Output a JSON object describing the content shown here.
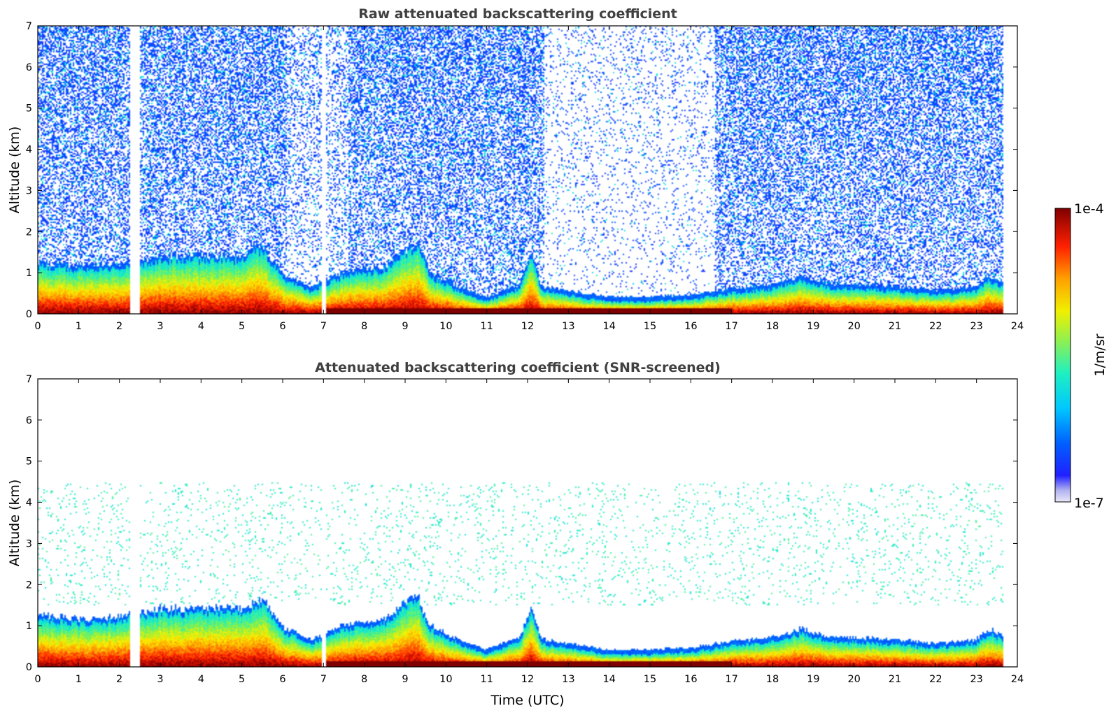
{
  "chart_data": [
    {
      "type": "heatmap",
      "title": "Raw attenuated backscattering coefficient",
      "xlabel": "",
      "ylabel": "Altitude (km)",
      "xlim": [
        0,
        24
      ],
      "ylim": [
        0,
        7
      ],
      "xticks": [
        "0",
        "1",
        "2",
        "3",
        "4",
        "5",
        "6",
        "7",
        "8",
        "9",
        "10",
        "11",
        "12",
        "13",
        "14",
        "15",
        "16",
        "17",
        "18",
        "19",
        "20",
        "21",
        "22",
        "23",
        "24"
      ],
      "yticks": [
        "0",
        "1",
        "2",
        "3",
        "4",
        "5",
        "6",
        "7"
      ],
      "screened": false,
      "data_gaps_utc": [
        [
          2.25,
          2.5
        ],
        [
          6.95,
          7.05
        ]
      ],
      "data_end_utc": 23.65,
      "boundary_layer_top_km": [
        [
          0,
          1.15
        ],
        [
          1,
          1.05
        ],
        [
          2,
          1.1
        ],
        [
          3,
          1.3
        ],
        [
          4,
          1.3
        ],
        [
          5,
          1.3
        ],
        [
          5.5,
          1.55
        ],
        [
          6,
          0.85
        ],
        [
          6.7,
          0.55
        ],
        [
          7.5,
          0.9
        ],
        [
          8.5,
          1.05
        ],
        [
          9.3,
          1.65
        ],
        [
          9.6,
          0.9
        ],
        [
          10.3,
          0.55
        ],
        [
          11,
          0.3
        ],
        [
          11.8,
          0.6
        ],
        [
          12.1,
          1.35
        ],
        [
          12.35,
          0.55
        ],
        [
          13,
          0.45
        ],
        [
          14,
          0.3
        ],
        [
          15,
          0.3
        ],
        [
          16,
          0.35
        ],
        [
          17,
          0.5
        ],
        [
          18,
          0.6
        ],
        [
          18.7,
          0.8
        ],
        [
          19.5,
          0.6
        ],
        [
          20,
          0.6
        ],
        [
          21,
          0.55
        ],
        [
          22,
          0.45
        ],
        [
          23,
          0.55
        ],
        [
          23.3,
          0.8
        ],
        [
          23.65,
          0.65
        ]
      ]
    },
    {
      "type": "heatmap",
      "title": "Attenuated backscattering coefficient (SNR-screened)",
      "xlabel": "Time (UTC)",
      "ylabel": "Altitude (km)",
      "xlim": [
        0,
        24
      ],
      "ylim": [
        0,
        7
      ],
      "xticks": [
        "0",
        "1",
        "2",
        "3",
        "4",
        "5",
        "6",
        "7",
        "8",
        "9",
        "10",
        "11",
        "12",
        "13",
        "14",
        "15",
        "16",
        "17",
        "18",
        "19",
        "20",
        "21",
        "22",
        "23",
        "24"
      ],
      "yticks": [
        "0",
        "1",
        "2",
        "3",
        "4",
        "5",
        "6",
        "7"
      ],
      "screened": true,
      "data_gaps_utc": [
        [
          2.25,
          2.5
        ],
        [
          6.95,
          7.05
        ]
      ],
      "data_end_utc": 23.65
    }
  ],
  "colorbar": {
    "min_label": "1e-7",
    "max_label": "1e-4",
    "unit_label": "1/m/sr",
    "colormap": "jet",
    "scale": "log"
  }
}
